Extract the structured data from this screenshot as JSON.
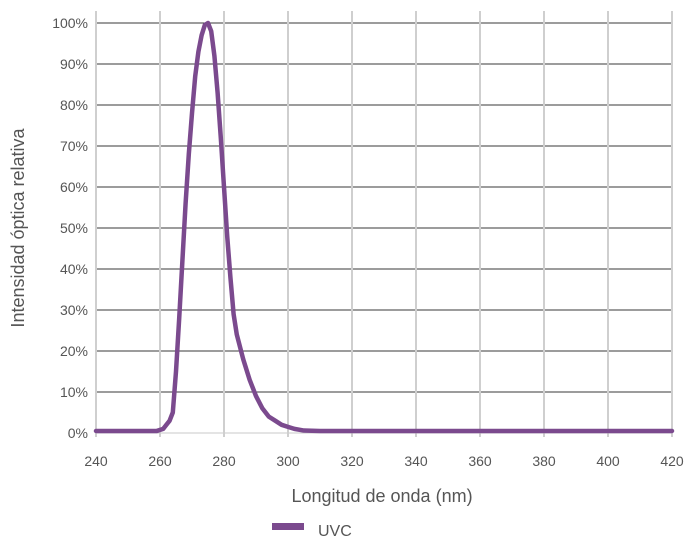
{
  "chart_data": {
    "type": "line",
    "xlabel": "Longitud de onda (nm)",
    "ylabel": "Intensidad óptica relativa",
    "xlim": [
      240,
      420
    ],
    "ylim": [
      0,
      100
    ],
    "x_ticks": [
      "240",
      "260",
      "280",
      "300",
      "320",
      "340",
      "360",
      "380",
      "400",
      "420"
    ],
    "y_ticks": [
      "0%",
      "10%",
      "20%",
      "30%",
      "40%",
      "50%",
      "60%",
      "70%",
      "80%",
      "90%",
      "100%"
    ],
    "grid": true,
    "legend_position": "bottom",
    "series": [
      {
        "name": "UVC",
        "color": "#7b4a8e",
        "x": [
          240,
          255,
          259,
          261,
          262,
          263,
          264,
          265,
          266,
          267,
          268,
          269,
          270,
          271,
          272,
          273,
          274,
          275,
          276,
          277,
          278,
          279,
          280,
          281,
          282,
          283,
          284,
          286,
          288,
          290,
          292,
          294,
          296,
          298,
          300,
          302,
          305,
          310,
          320,
          340,
          360,
          380,
          400,
          420
        ],
        "y": [
          0.5,
          0.5,
          0.5,
          1,
          2,
          3,
          5,
          15,
          28,
          42,
          56,
          68,
          78,
          87,
          93,
          97,
          99.5,
          100,
          98,
          92,
          83,
          72,
          60,
          48,
          38,
          29,
          24,
          18,
          13,
          9,
          6,
          4,
          3,
          2,
          1.5,
          1,
          0.6,
          0.5,
          0.5,
          0.5,
          0.5,
          0.5,
          0.5,
          0.5
        ]
      }
    ]
  }
}
